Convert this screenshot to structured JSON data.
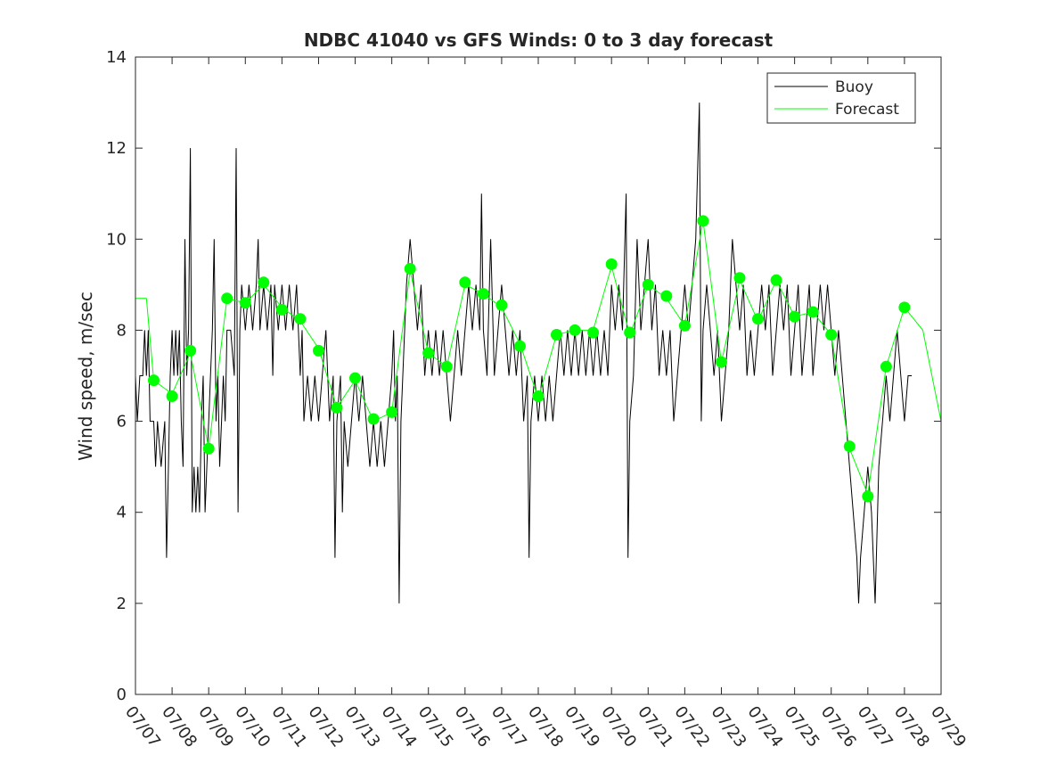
{
  "chart_data": {
    "type": "line",
    "title": "NDBC 41040 vs GFS Winds: 0 to 3 day forecast",
    "xlabel": "",
    "ylabel": "Wind speed, m/sec",
    "x_tick_labels": [
      "07/07",
      "07/08",
      "07/09",
      "07/10",
      "07/11",
      "07/12",
      "07/13",
      "07/14",
      "07/15",
      "07/16",
      "07/17",
      "07/18",
      "07/19",
      "07/20",
      "07/21",
      "07/22",
      "07/23",
      "07/24",
      "07/25",
      "07/26",
      "07/27",
      "07/28",
      "07/29"
    ],
    "y_ticks": [
      0,
      2,
      4,
      6,
      8,
      10,
      12,
      14
    ],
    "ylim": [
      0,
      14
    ],
    "xlim_days": [
      0,
      22
    ],
    "grid": false,
    "legend_position": "top-right",
    "series": [
      {
        "name": "Buoy",
        "color": "#000000",
        "style": "line",
        "points": [
          [
            0.0,
            7
          ],
          [
            0.05,
            6
          ],
          [
            0.12,
            7
          ],
          [
            0.2,
            7
          ],
          [
            0.25,
            8
          ],
          [
            0.3,
            7
          ],
          [
            0.35,
            8
          ],
          [
            0.4,
            6
          ],
          [
            0.5,
            6
          ],
          [
            0.55,
            5
          ],
          [
            0.6,
            6
          ],
          [
            0.7,
            5
          ],
          [
            0.8,
            6
          ],
          [
            0.85,
            3
          ],
          [
            0.9,
            5
          ],
          [
            0.95,
            7
          ],
          [
            1.0,
            8
          ],
          [
            1.05,
            7
          ],
          [
            1.1,
            8
          ],
          [
            1.15,
            7
          ],
          [
            1.2,
            8
          ],
          [
            1.25,
            6
          ],
          [
            1.3,
            5
          ],
          [
            1.35,
            10
          ],
          [
            1.4,
            7
          ],
          [
            1.45,
            8
          ],
          [
            1.5,
            12
          ],
          [
            1.55,
            4
          ],
          [
            1.6,
            5
          ],
          [
            1.65,
            4
          ],
          [
            1.7,
            5
          ],
          [
            1.75,
            4
          ],
          [
            1.8,
            6
          ],
          [
            1.85,
            7
          ],
          [
            1.9,
            4
          ],
          [
            1.95,
            5
          ],
          [
            2.0,
            6
          ],
          [
            2.05,
            7
          ],
          [
            2.1,
            8
          ],
          [
            2.15,
            10
          ],
          [
            2.2,
            6
          ],
          [
            2.25,
            7
          ],
          [
            2.3,
            5
          ],
          [
            2.35,
            6
          ],
          [
            2.4,
            7
          ],
          [
            2.45,
            6
          ],
          [
            2.5,
            8
          ],
          [
            2.6,
            8
          ],
          [
            2.7,
            7
          ],
          [
            2.75,
            12
          ],
          [
            2.8,
            4
          ],
          [
            2.85,
            8
          ],
          [
            2.9,
            9
          ],
          [
            3.0,
            8
          ],
          [
            3.1,
            9
          ],
          [
            3.2,
            8
          ],
          [
            3.3,
            9
          ],
          [
            3.35,
            10
          ],
          [
            3.4,
            8
          ],
          [
            3.5,
            9
          ],
          [
            3.6,
            8
          ],
          [
            3.7,
            9
          ],
          [
            3.75,
            7
          ],
          [
            3.8,
            9
          ],
          [
            3.9,
            8
          ],
          [
            4.0,
            9
          ],
          [
            4.1,
            8
          ],
          [
            4.2,
            9
          ],
          [
            4.3,
            8
          ],
          [
            4.4,
            9
          ],
          [
            4.5,
            7
          ],
          [
            4.55,
            8
          ],
          [
            4.6,
            6
          ],
          [
            4.7,
            7
          ],
          [
            4.8,
            6
          ],
          [
            4.9,
            7
          ],
          [
            5.0,
            6
          ],
          [
            5.1,
            7
          ],
          [
            5.2,
            8
          ],
          [
            5.3,
            6
          ],
          [
            5.4,
            7
          ],
          [
            5.45,
            3
          ],
          [
            5.5,
            6
          ],
          [
            5.6,
            7
          ],
          [
            5.65,
            4
          ],
          [
            5.7,
            6
          ],
          [
            5.8,
            5
          ],
          [
            5.9,
            6
          ],
          [
            6.0,
            7
          ],
          [
            6.1,
            6
          ],
          [
            6.2,
            7
          ],
          [
            6.3,
            6
          ],
          [
            6.4,
            5
          ],
          [
            6.5,
            6
          ],
          [
            6.6,
            5
          ],
          [
            6.7,
            6
          ],
          [
            6.8,
            5
          ],
          [
            6.9,
            6
          ],
          [
            7.0,
            7
          ],
          [
            7.05,
            8
          ],
          [
            7.1,
            6
          ],
          [
            7.15,
            7
          ],
          [
            7.2,
            2
          ],
          [
            7.25,
            6
          ],
          [
            7.3,
            7
          ],
          [
            7.4,
            9
          ],
          [
            7.5,
            10
          ],
          [
            7.6,
            9
          ],
          [
            7.7,
            8
          ],
          [
            7.8,
            9
          ],
          [
            7.9,
            7
          ],
          [
            8.0,
            8
          ],
          [
            8.1,
            7
          ],
          [
            8.2,
            8
          ],
          [
            8.3,
            7
          ],
          [
            8.4,
            8
          ],
          [
            8.5,
            7
          ],
          [
            8.6,
            6
          ],
          [
            8.7,
            7
          ],
          [
            8.8,
            8
          ],
          [
            8.9,
            7
          ],
          [
            9.0,
            8
          ],
          [
            9.1,
            9
          ],
          [
            9.2,
            8
          ],
          [
            9.3,
            9
          ],
          [
            9.4,
            8
          ],
          [
            9.45,
            11
          ],
          [
            9.5,
            8
          ],
          [
            9.6,
            7
          ],
          [
            9.7,
            10
          ],
          [
            9.8,
            7
          ],
          [
            9.9,
            8
          ],
          [
            10.0,
            9
          ],
          [
            10.1,
            8
          ],
          [
            10.2,
            7
          ],
          [
            10.3,
            8
          ],
          [
            10.4,
            7
          ],
          [
            10.5,
            8
          ],
          [
            10.6,
            6
          ],
          [
            10.7,
            7
          ],
          [
            10.75,
            3
          ],
          [
            10.8,
            6
          ],
          [
            10.9,
            7
          ],
          [
            11.0,
            6
          ],
          [
            11.1,
            7
          ],
          [
            11.2,
            6
          ],
          [
            11.3,
            7
          ],
          [
            11.4,
            6
          ],
          [
            11.5,
            7
          ],
          [
            11.6,
            8
          ],
          [
            11.7,
            7
          ],
          [
            11.8,
            8
          ],
          [
            11.9,
            7
          ],
          [
            12.0,
            8
          ],
          [
            12.1,
            7
          ],
          [
            12.2,
            8
          ],
          [
            12.3,
            7
          ],
          [
            12.4,
            8
          ],
          [
            12.5,
            7
          ],
          [
            12.6,
            8
          ],
          [
            12.7,
            7
          ],
          [
            12.8,
            8
          ],
          [
            12.9,
            7
          ],
          [
            13.0,
            9
          ],
          [
            13.1,
            8
          ],
          [
            13.2,
            9
          ],
          [
            13.3,
            8
          ],
          [
            13.4,
            11
          ],
          [
            13.45,
            3
          ],
          [
            13.5,
            6
          ],
          [
            13.6,
            7
          ],
          [
            13.7,
            10
          ],
          [
            13.8,
            8
          ],
          [
            13.9,
            9
          ],
          [
            14.0,
            10
          ],
          [
            14.1,
            8
          ],
          [
            14.2,
            9
          ],
          [
            14.3,
            7
          ],
          [
            14.4,
            8
          ],
          [
            14.5,
            7
          ],
          [
            14.6,
            8
          ],
          [
            14.7,
            6
          ],
          [
            14.8,
            7
          ],
          [
            14.9,
            8
          ],
          [
            15.0,
            9
          ],
          [
            15.1,
            8
          ],
          [
            15.2,
            9
          ],
          [
            15.3,
            10
          ],
          [
            15.4,
            13
          ],
          [
            15.45,
            6
          ],
          [
            15.5,
            8
          ],
          [
            15.6,
            9
          ],
          [
            15.7,
            8
          ],
          [
            15.8,
            7
          ],
          [
            15.9,
            8
          ],
          [
            16.0,
            6
          ],
          [
            16.1,
            7
          ],
          [
            16.2,
            8
          ],
          [
            16.3,
            10
          ],
          [
            16.4,
            9
          ],
          [
            16.5,
            8
          ],
          [
            16.6,
            9
          ],
          [
            16.7,
            7
          ],
          [
            16.8,
            8
          ],
          [
            16.9,
            7
          ],
          [
            17.0,
            8
          ],
          [
            17.1,
            9
          ],
          [
            17.2,
            8
          ],
          [
            17.3,
            9
          ],
          [
            17.4,
            7
          ],
          [
            17.5,
            8
          ],
          [
            17.6,
            9
          ],
          [
            17.7,
            8
          ],
          [
            17.8,
            9
          ],
          [
            17.9,
            7
          ],
          [
            18.0,
            8
          ],
          [
            18.1,
            9
          ],
          [
            18.2,
            7
          ],
          [
            18.3,
            8
          ],
          [
            18.4,
            9
          ],
          [
            18.5,
            7
          ],
          [
            18.6,
            8
          ],
          [
            18.7,
            9
          ],
          [
            18.8,
            8
          ],
          [
            18.9,
            9
          ],
          [
            19.0,
            8
          ],
          [
            19.1,
            7
          ],
          [
            19.2,
            8
          ],
          [
            19.3,
            7
          ],
          [
            19.4,
            6
          ],
          [
            19.5,
            5
          ],
          [
            19.6,
            4
          ],
          [
            19.7,
            3
          ],
          [
            19.75,
            2
          ],
          [
            19.8,
            3
          ],
          [
            19.9,
            4
          ],
          [
            20.0,
            5
          ],
          [
            20.1,
            4
          ],
          [
            20.2,
            2
          ],
          [
            20.3,
            5
          ],
          [
            20.4,
            6
          ],
          [
            20.5,
            7
          ],
          [
            20.6,
            6
          ],
          [
            20.7,
            7
          ],
          [
            20.8,
            8
          ],
          [
            20.9,
            7
          ],
          [
            21.0,
            6
          ],
          [
            21.1,
            7
          ],
          [
            21.2,
            7
          ]
        ]
      },
      {
        "name": "Forecast",
        "color": "#00ff00",
        "style": "line",
        "points": [
          [
            0.0,
            8.7
          ],
          [
            0.3,
            8.7
          ],
          [
            0.5,
            6.9
          ],
          [
            1.0,
            6.6
          ],
          [
            1.5,
            7.5
          ],
          [
            2.0,
            5.4
          ],
          [
            2.5,
            8.7
          ],
          [
            3.0,
            8.6
          ],
          [
            3.5,
            9.0
          ],
          [
            4.0,
            8.5
          ],
          [
            4.5,
            8.2
          ],
          [
            5.0,
            7.6
          ],
          [
            5.5,
            6.3
          ],
          [
            6.0,
            6.9
          ],
          [
            6.5,
            6.0
          ],
          [
            7.0,
            6.2
          ],
          [
            7.5,
            9.3
          ],
          [
            8.0,
            7.5
          ],
          [
            8.5,
            7.2
          ],
          [
            9.0,
            9.0
          ],
          [
            9.5,
            8.8
          ],
          [
            10.0,
            8.5
          ],
          [
            10.5,
            7.7
          ],
          [
            11.0,
            6.5
          ],
          [
            11.5,
            7.9
          ],
          [
            12.0,
            8.0
          ],
          [
            12.5,
            8.0
          ],
          [
            13.0,
            9.4
          ],
          [
            13.5,
            7.9
          ],
          [
            14.0,
            9.0
          ],
          [
            14.5,
            8.7
          ],
          [
            15.0,
            8.1
          ],
          [
            15.5,
            10.4
          ],
          [
            16.0,
            7.3
          ],
          [
            16.5,
            9.1
          ],
          [
            17.0,
            8.2
          ],
          [
            17.5,
            9.1
          ],
          [
            18.0,
            8.3
          ],
          [
            18.5,
            8.4
          ],
          [
            19.0,
            7.9
          ],
          [
            19.5,
            5.4
          ],
          [
            20.0,
            4.4
          ],
          [
            20.5,
            7.2
          ],
          [
            21.0,
            8.5
          ],
          [
            21.5,
            8.0
          ],
          [
            22.0,
            6.0
          ]
        ]
      }
    ],
    "analysis_points": {
      "color": "#00ff00",
      "x": [
        0.5,
        1.0,
        1.5,
        2.0,
        2.5,
        3.0,
        3.5,
        4.0,
        4.5,
        5.0,
        5.5,
        6.0,
        6.5,
        7.0,
        7.5,
        8.0,
        8.5,
        9.0,
        9.5,
        10.0,
        10.5,
        11.0,
        11.5,
        12.0,
        12.5,
        13.0,
        13.5,
        14.0,
        14.5,
        15.0,
        15.5,
        16.0,
        16.5,
        17.0,
        17.5,
        18.0,
        18.5,
        19.0,
        19.5,
        20.0,
        20.5,
        21.0
      ],
      "y": [
        6.9,
        6.55,
        7.55,
        5.4,
        8.7,
        8.6,
        9.05,
        8.45,
        8.25,
        7.55,
        6.3,
        6.95,
        6.05,
        6.2,
        9.35,
        7.5,
        7.2,
        9.05,
        8.8,
        8.55,
        7.65,
        6.55,
        7.9,
        8.0,
        7.95,
        9.45,
        7.95,
        9.0,
        8.75,
        8.1,
        10.4,
        7.3,
        9.15,
        8.25,
        9.1,
        8.3,
        8.4,
        7.9,
        5.45,
        4.35,
        7.2,
        8.5
      ]
    }
  }
}
